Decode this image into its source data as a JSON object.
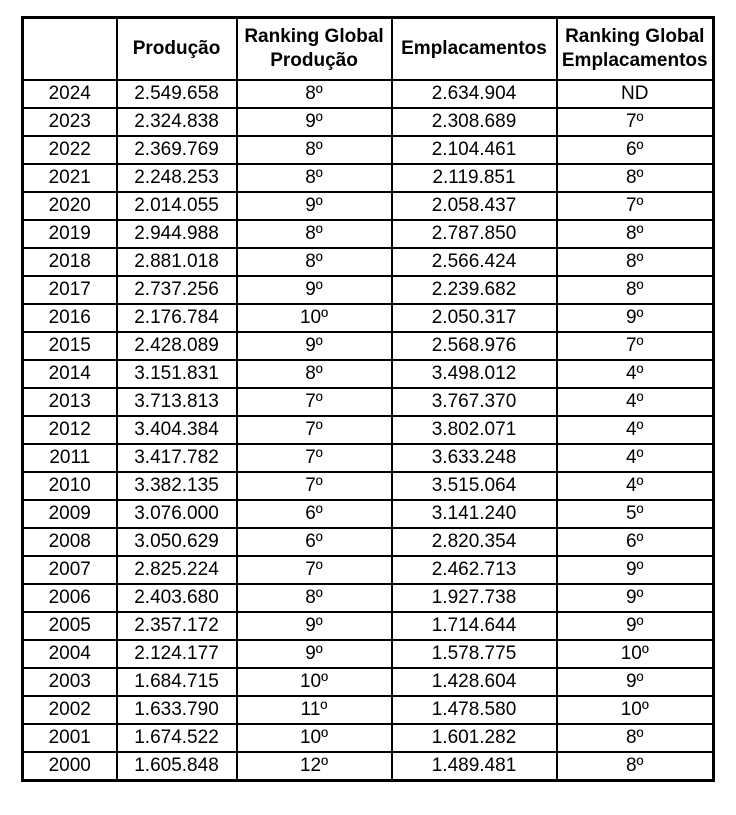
{
  "chart_data": {
    "type": "table",
    "columns": [
      "",
      "Produção",
      "Ranking Global Produção",
      "Emplacamentos",
      "Ranking Global Emplacamentos"
    ],
    "rows": [
      {
        "year": "2024",
        "producao": "2.549.658",
        "ranking_producao": "8º",
        "emplacamentos": "2.634.904",
        "ranking_emplacamentos": "ND"
      },
      {
        "year": "2023",
        "producao": "2.324.838",
        "ranking_producao": "9º",
        "emplacamentos": "2.308.689",
        "ranking_emplacamentos": "7º"
      },
      {
        "year": "2022",
        "producao": "2.369.769",
        "ranking_producao": "8º",
        "emplacamentos": "2.104.461",
        "ranking_emplacamentos": "6º"
      },
      {
        "year": "2021",
        "producao": "2.248.253",
        "ranking_producao": "8º",
        "emplacamentos": "2.119.851",
        "ranking_emplacamentos": "8º"
      },
      {
        "year": "2020",
        "producao": "2.014.055",
        "ranking_producao": "9º",
        "emplacamentos": "2.058.437",
        "ranking_emplacamentos": "7º"
      },
      {
        "year": "2019",
        "producao": "2.944.988",
        "ranking_producao": "8º",
        "emplacamentos": "2.787.850",
        "ranking_emplacamentos": "8º"
      },
      {
        "year": "2018",
        "producao": "2.881.018",
        "ranking_producao": "8º",
        "emplacamentos": "2.566.424",
        "ranking_emplacamentos": "8º"
      },
      {
        "year": "2017",
        "producao": "2.737.256",
        "ranking_producao": "9º",
        "emplacamentos": "2.239.682",
        "ranking_emplacamentos": "8º"
      },
      {
        "year": "2016",
        "producao": "2.176.784",
        "ranking_producao": "10º",
        "emplacamentos": "2.050.317",
        "ranking_emplacamentos": "9º"
      },
      {
        "year": "2015",
        "producao": "2.428.089",
        "ranking_producao": "9º",
        "emplacamentos": "2.568.976",
        "ranking_emplacamentos": "7º"
      },
      {
        "year": "2014",
        "producao": "3.151.831",
        "ranking_producao": "8º",
        "emplacamentos": "3.498.012",
        "ranking_emplacamentos": "4º"
      },
      {
        "year": "2013",
        "producao": "3.713.813",
        "ranking_producao": "7º",
        "emplacamentos": "3.767.370",
        "ranking_emplacamentos": "4º"
      },
      {
        "year": "2012",
        "producao": "3.404.384",
        "ranking_producao": "7º",
        "emplacamentos": "3.802.071",
        "ranking_emplacamentos": "4º"
      },
      {
        "year": "2011",
        "producao": "3.417.782",
        "ranking_producao": "7º",
        "emplacamentos": "3.633.248",
        "ranking_emplacamentos": "4º"
      },
      {
        "year": "2010",
        "producao": "3.382.135",
        "ranking_producao": "7º",
        "emplacamentos": "3.515.064",
        "ranking_emplacamentos": "4º"
      },
      {
        "year": "2009",
        "producao": "3.076.000",
        "ranking_producao": "6º",
        "emplacamentos": "3.141.240",
        "ranking_emplacamentos": "5º"
      },
      {
        "year": "2008",
        "producao": "3.050.629",
        "ranking_producao": "6º",
        "emplacamentos": "2.820.354",
        "ranking_emplacamentos": "6º"
      },
      {
        "year": "2007",
        "producao": "2.825.224",
        "ranking_producao": "7º",
        "emplacamentos": "2.462.713",
        "ranking_emplacamentos": "9º"
      },
      {
        "year": "2006",
        "producao": "2.403.680",
        "ranking_producao": "8º",
        "emplacamentos": "1.927.738",
        "ranking_emplacamentos": "9º"
      },
      {
        "year": "2005",
        "producao": "2.357.172",
        "ranking_producao": "9º",
        "emplacamentos": "1.714.644",
        "ranking_emplacamentos": "9º"
      },
      {
        "year": "2004",
        "producao": "2.124.177",
        "ranking_producao": "9º",
        "emplacamentos": "1.578.775",
        "ranking_emplacamentos": "10º"
      },
      {
        "year": "2003",
        "producao": "1.684.715",
        "ranking_producao": "10º",
        "emplacamentos": "1.428.604",
        "ranking_emplacamentos": "9º"
      },
      {
        "year": "2002",
        "producao": "1.633.790",
        "ranking_producao": "11º",
        "emplacamentos": "1.478.580",
        "ranking_emplacamentos": "10º"
      },
      {
        "year": "2001",
        "producao": "1.674.522",
        "ranking_producao": "10º",
        "emplacamentos": "1.601.282",
        "ranking_emplacamentos": "8º"
      },
      {
        "year": "2000",
        "producao": "1.605.848",
        "ranking_producao": "12º",
        "emplacamentos": "1.489.481",
        "ranking_emplacamentos": "8º"
      }
    ]
  },
  "colors": {
    "border": "#000000",
    "text": "#000000",
    "background": "#ffffff"
  }
}
